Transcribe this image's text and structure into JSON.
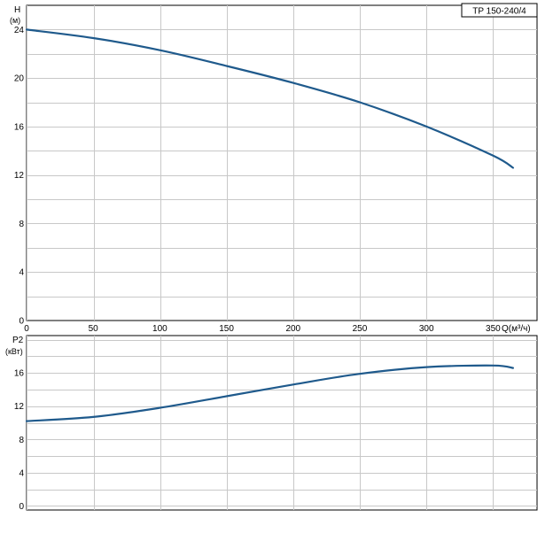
{
  "colors": {
    "curve": "#1f5a8c",
    "grid": "#c8c8c8",
    "frame": "#000000"
  },
  "chart_data": [
    {
      "type": "line",
      "title": "TP 150-240/4",
      "ylabel_top": "H",
      "ylabel_unit": "(м)",
      "xlabel": "Q(м³/ч)",
      "xlim": [
        0,
        383
      ],
      "ylim": [
        0,
        26
      ],
      "xticks": [
        0,
        50,
        100,
        150,
        200,
        250,
        300,
        350
      ],
      "yticks": [
        0,
        4,
        8,
        12,
        16,
        20,
        24
      ],
      "grid": true,
      "series": [
        {
          "x": [
            0,
            50,
            100,
            150,
            200,
            250,
            300,
            350,
            365
          ],
          "y": [
            24.0,
            23.3,
            22.3,
            21.0,
            19.6,
            18.0,
            16.0,
            13.6,
            12.6
          ]
        }
      ]
    },
    {
      "type": "line",
      "ylabel_top": "P2",
      "ylabel_unit": "(кВт)",
      "xlim": [
        0,
        383
      ],
      "ylim": [
        -0.5,
        20.5
      ],
      "yticks": [
        0,
        4,
        8,
        12,
        16
      ],
      "grid": true,
      "series": [
        {
          "x": [
            0,
            50,
            100,
            150,
            200,
            250,
            300,
            350,
            365
          ],
          "y": [
            10.2,
            10.7,
            11.8,
            13.2,
            14.6,
            15.9,
            16.7,
            16.9,
            16.6
          ]
        }
      ]
    }
  ]
}
